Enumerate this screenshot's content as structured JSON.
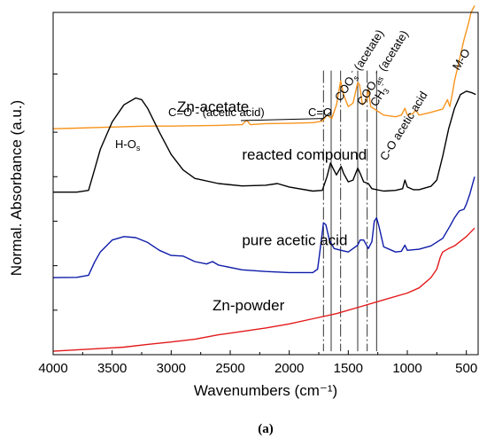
{
  "chart_data": {
    "type": "line",
    "title": "",
    "xlabel": "Wavenumbers (cm⁻¹)",
    "ylabel": "Normal. Absorbance (a.u.)",
    "xlim": [
      4000,
      400
    ],
    "x_reversed": true,
    "xticks": [
      4000,
      3500,
      3000,
      2500,
      2000,
      1500,
      1000,
      500
    ],
    "grid": false,
    "legend": "none",
    "caption": "(a)",
    "series": [
      {
        "name": "Zn-acetate",
        "color": "#F7941D",
        "points": [
          [
            4000,
            0.66
          ],
          [
            3800,
            0.662
          ],
          [
            3600,
            0.664
          ],
          [
            3400,
            0.666
          ],
          [
            3200,
            0.668
          ],
          [
            3000,
            0.668
          ],
          [
            2800,
            0.669
          ],
          [
            2600,
            0.67
          ],
          [
            2400,
            0.672
          ],
          [
            2360,
            0.685
          ],
          [
            2330,
            0.672
          ],
          [
            2200,
            0.675
          ],
          [
            2000,
            0.676
          ],
          [
            1800,
            0.678
          ],
          [
            1720,
            0.682
          ],
          [
            1680,
            0.7
          ],
          [
            1640,
            0.69
          ],
          [
            1600,
            0.73
          ],
          [
            1565,
            0.8
          ],
          [
            1540,
            0.76
          ],
          [
            1500,
            0.725
          ],
          [
            1460,
            0.735
          ],
          [
            1420,
            0.795
          ],
          [
            1405,
            0.79
          ],
          [
            1380,
            0.73
          ],
          [
            1350,
            0.74
          ],
          [
            1330,
            0.775
          ],
          [
            1310,
            0.725
          ],
          [
            1200,
            0.7
          ],
          [
            1100,
            0.695
          ],
          [
            1050,
            0.7
          ],
          [
            1020,
            0.72
          ],
          [
            1000,
            0.7
          ],
          [
            950,
            0.705
          ],
          [
            930,
            0.715
          ],
          [
            900,
            0.7
          ],
          [
            800,
            0.708
          ],
          [
            700,
            0.718
          ],
          [
            660,
            0.745
          ],
          [
            640,
            0.725
          ],
          [
            620,
            0.76
          ],
          [
            600,
            0.8
          ],
          [
            560,
            0.86
          ],
          [
            520,
            0.92
          ],
          [
            480,
            0.97
          ],
          [
            460,
            1.0
          ],
          [
            430,
            1.02
          ]
        ]
      },
      {
        "name": "reacted compound",
        "color": "#000000",
        "points": [
          [
            4000,
            0.475
          ],
          [
            3800,
            0.475
          ],
          [
            3700,
            0.48
          ],
          [
            3650,
            0.54
          ],
          [
            3600,
            0.6
          ],
          [
            3500,
            0.68
          ],
          [
            3400,
            0.73
          ],
          [
            3300,
            0.75
          ],
          [
            3250,
            0.745
          ],
          [
            3200,
            0.72
          ],
          [
            3100,
            0.65
          ],
          [
            3000,
            0.585
          ],
          [
            2900,
            0.54
          ],
          [
            2800,
            0.515
          ],
          [
            2600,
            0.5
          ],
          [
            2400,
            0.493
          ],
          [
            2200,
            0.495
          ],
          [
            2100,
            0.5
          ],
          [
            2000,
            0.49
          ],
          [
            1800,
            0.478
          ],
          [
            1720,
            0.48
          ],
          [
            1680,
            0.52
          ],
          [
            1650,
            0.56
          ],
          [
            1630,
            0.545
          ],
          [
            1600,
            0.525
          ],
          [
            1560,
            0.55
          ],
          [
            1540,
            0.53
          ],
          [
            1500,
            0.505
          ],
          [
            1460,
            0.51
          ],
          [
            1420,
            0.545
          ],
          [
            1400,
            0.53
          ],
          [
            1370,
            0.505
          ],
          [
            1330,
            0.5
          ],
          [
            1300,
            0.485
          ],
          [
            1200,
            0.478
          ],
          [
            1100,
            0.48
          ],
          [
            1040,
            0.485
          ],
          [
            1020,
            0.51
          ],
          [
            1000,
            0.49
          ],
          [
            950,
            0.482
          ],
          [
            900,
            0.482
          ],
          [
            800,
            0.492
          ],
          [
            750,
            0.51
          ],
          [
            700,
            0.58
          ],
          [
            650,
            0.66
          ],
          [
            600,
            0.72
          ],
          [
            550,
            0.76
          ],
          [
            500,
            0.77
          ],
          [
            450,
            0.765
          ],
          [
            420,
            0.76
          ]
        ]
      },
      {
        "name": "pure acetic acid",
        "color": "#0D1BA8",
        "points": [
          [
            4000,
            0.225
          ],
          [
            3800,
            0.226
          ],
          [
            3700,
            0.232
          ],
          [
            3650,
            0.27
          ],
          [
            3600,
            0.3
          ],
          [
            3500,
            0.335
          ],
          [
            3400,
            0.345
          ],
          [
            3300,
            0.342
          ],
          [
            3200,
            0.328
          ],
          [
            3100,
            0.305
          ],
          [
            3000,
            0.29
          ],
          [
            2900,
            0.288
          ],
          [
            2800,
            0.272
          ],
          [
            2700,
            0.265
          ],
          [
            2650,
            0.272
          ],
          [
            2600,
            0.262
          ],
          [
            2400,
            0.248
          ],
          [
            2200,
            0.243
          ],
          [
            2000,
            0.24
          ],
          [
            1800,
            0.24
          ],
          [
            1760,
            0.25
          ],
          [
            1730,
            0.33
          ],
          [
            1710,
            0.385
          ],
          [
            1690,
            0.38
          ],
          [
            1660,
            0.335
          ],
          [
            1620,
            0.31
          ],
          [
            1560,
            0.305
          ],
          [
            1500,
            0.3
          ],
          [
            1460,
            0.31
          ],
          [
            1420,
            0.32
          ],
          [
            1400,
            0.335
          ],
          [
            1370,
            0.335
          ],
          [
            1330,
            0.31
          ],
          [
            1300,
            0.33
          ],
          [
            1280,
            0.39
          ],
          [
            1260,
            0.4
          ],
          [
            1240,
            0.375
          ],
          [
            1200,
            0.315
          ],
          [
            1100,
            0.3
          ],
          [
            1050,
            0.302
          ],
          [
            1020,
            0.32
          ],
          [
            1000,
            0.305
          ],
          [
            900,
            0.308
          ],
          [
            800,
            0.318
          ],
          [
            700,
            0.34
          ],
          [
            640,
            0.375
          ],
          [
            600,
            0.4
          ],
          [
            560,
            0.42
          ],
          [
            520,
            0.425
          ],
          [
            500,
            0.44
          ],
          [
            470,
            0.47
          ],
          [
            430,
            0.52
          ]
        ]
      },
      {
        "name": "Zn-powder",
        "color": "#E31A1C",
        "points": [
          [
            4000,
            0.01
          ],
          [
            3800,
            0.014
          ],
          [
            3600,
            0.018
          ],
          [
            3400,
            0.022
          ],
          [
            3200,
            0.03
          ],
          [
            3000,
            0.037
          ],
          [
            2800,
            0.045
          ],
          [
            2600,
            0.058
          ],
          [
            2400,
            0.068
          ],
          [
            2200,
            0.078
          ],
          [
            2000,
            0.09
          ],
          [
            1800,
            0.105
          ],
          [
            1600,
            0.12
          ],
          [
            1400,
            0.14
          ],
          [
            1200,
            0.16
          ],
          [
            1000,
            0.18
          ],
          [
            900,
            0.195
          ],
          [
            800,
            0.225
          ],
          [
            750,
            0.25
          ],
          [
            720,
            0.285
          ],
          [
            700,
            0.3
          ],
          [
            650,
            0.31
          ],
          [
            600,
            0.318
          ],
          [
            500,
            0.345
          ],
          [
            430,
            0.37
          ]
        ]
      }
    ],
    "series_labels": [
      {
        "text": "Zn-acetate",
        "x": 2950,
        "y": 0.71
      },
      {
        "text": "reacted compound",
        "x": 2400,
        "y": 0.57
      },
      {
        "text": "pure acetic acid",
        "x": 2400,
        "y": 0.32
      },
      {
        "text": "Zn-powder",
        "x": 2650,
        "y": 0.13
      }
    ],
    "vertical_lines": [
      1710,
      1645,
      1565,
      1420,
      1340,
      1260
    ],
    "annotations": [
      {
        "key": "ho",
        "main": "H-O",
        "sub": "s",
        "sup": "",
        "tail": ""
      },
      {
        "key": "co_acid",
        "main": "C=O - (acetic acid)",
        "sub": "",
        "sup": "",
        "tail": ""
      },
      {
        "key": "co",
        "main": "C=O",
        "sub": "",
        "sup": "",
        "tail": ""
      },
      {
        "key": "coos",
        "main": "COO",
        "sub": "s",
        "sup": "-",
        "tail": "(acetate)"
      },
      {
        "key": "cooas",
        "main": "COO",
        "sub": "as",
        "sup": "-",
        "tail": "(acetate)"
      },
      {
        "key": "ch3",
        "main": "CH",
        "sub": "3",
        "sup": "-",
        "tail": ""
      },
      {
        "key": "co_acetic",
        "main": "C-O acetic acid",
        "sub": "",
        "sup": "",
        "tail": ""
      },
      {
        "key": "mo",
        "main": "M-O",
        "sub": "",
        "sup": "",
        "tail": ""
      }
    ]
  }
}
